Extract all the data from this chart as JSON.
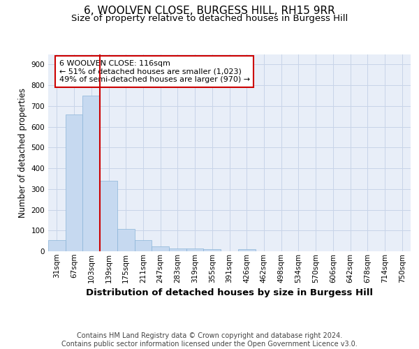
{
  "title": "6, WOOLVEN CLOSE, BURGESS HILL, RH15 9RR",
  "subtitle": "Size of property relative to detached houses in Burgess Hill",
  "xlabel": "Distribution of detached houses by size in Burgess Hill",
  "ylabel": "Number of detached properties",
  "footer_line1": "Contains HM Land Registry data © Crown copyright and database right 2024.",
  "footer_line2": "Contains public sector information licensed under the Open Government Licence v3.0.",
  "bin_labels": [
    "31sqm",
    "67sqm",
    "103sqm",
    "139sqm",
    "175sqm",
    "211sqm",
    "247sqm",
    "283sqm",
    "319sqm",
    "355sqm",
    "391sqm",
    "426sqm",
    "462sqm",
    "498sqm",
    "534sqm",
    "570sqm",
    "606sqm",
    "642sqm",
    "678sqm",
    "714sqm",
    "750sqm"
  ],
  "bar_values": [
    55,
    660,
    750,
    338,
    107,
    53,
    25,
    14,
    13,
    9,
    0,
    9,
    0,
    0,
    0,
    0,
    0,
    0,
    0,
    0,
    0
  ],
  "bar_color": "#c6d9f0",
  "bar_edge_color": "#8ab4d8",
  "bar_edge_width": 0.5,
  "grid_color": "#c8d4e8",
  "background_color": "#e8eef8",
  "vline_x": 2.5,
  "vline_color": "#cc0000",
  "annotation_text": "6 WOOLVEN CLOSE: 116sqm\n← 51% of detached houses are smaller (1,023)\n49% of semi-detached houses are larger (970) →",
  "annotation_box_color": "#ffffff",
  "annotation_border_color": "#cc0000",
  "ylim": [
    0,
    950
  ],
  "yticks": [
    0,
    100,
    200,
    300,
    400,
    500,
    600,
    700,
    800,
    900
  ],
  "title_fontsize": 11,
  "subtitle_fontsize": 9.5,
  "xlabel_fontsize": 9.5,
  "ylabel_fontsize": 8.5,
  "tick_fontsize": 7.5,
  "annotation_fontsize": 8,
  "footer_fontsize": 7
}
